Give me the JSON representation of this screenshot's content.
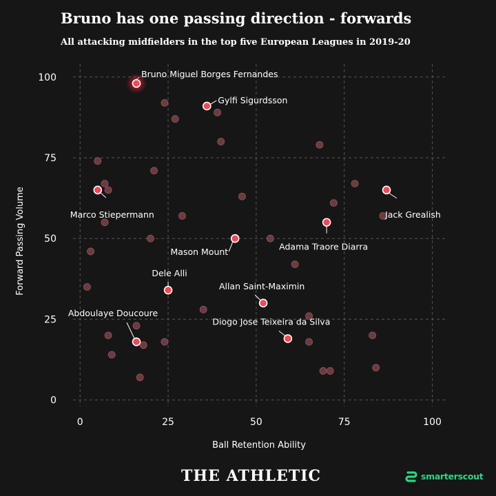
{
  "chart_data": {
    "type": "scatter",
    "title": "Bruno has one passing direction - forwards",
    "subtitle": "All attacking midfielders in the top five European Leagues in 2019-20",
    "xlabel": "Ball Retention Ability",
    "ylabel": "Forward Passing Volume",
    "xlim": [
      -2,
      104
    ],
    "ylim": [
      -2,
      104
    ],
    "xticks": [
      0,
      25,
      50,
      75,
      100
    ],
    "yticks": [
      0,
      25,
      50,
      75,
      100
    ],
    "grid": true,
    "highlight_color": "#ff4552",
    "base_color": "#6e3a3e",
    "points": [
      [
        24,
        92
      ],
      [
        27,
        87
      ],
      [
        39,
        89
      ],
      [
        40,
        80
      ],
      [
        68,
        79
      ],
      [
        5,
        74
      ],
      [
        21,
        71
      ],
      [
        7,
        67
      ],
      [
        8,
        65
      ],
      [
        78,
        67
      ],
      [
        46,
        63
      ],
      [
        72,
        61
      ],
      [
        86,
        57
      ],
      [
        29,
        57
      ],
      [
        7,
        55
      ],
      [
        20,
        50
      ],
      [
        54,
        50
      ],
      [
        3,
        46
      ],
      [
        61,
        42
      ],
      [
        2,
        35
      ],
      [
        35,
        28
      ],
      [
        65,
        26
      ],
      [
        16,
        23
      ],
      [
        8,
        20
      ],
      [
        83,
        20
      ],
      [
        24,
        18
      ],
      [
        18,
        17
      ],
      [
        65,
        18
      ],
      [
        9,
        14
      ],
      [
        84,
        10
      ],
      [
        69,
        9
      ],
      [
        71,
        9
      ],
      [
        17,
        7
      ]
    ],
    "highlighted": [
      {
        "name": "Bruno Miguel Borges Fernandes",
        "x": 16,
        "y": 98
      },
      {
        "name": "Gylfi Sigurdsson",
        "x": 36,
        "y": 91
      },
      {
        "name": "Marco Stiepermann",
        "x": 5,
        "y": 65
      },
      {
        "name": "Jack Grealish",
        "x": 87,
        "y": 65
      },
      {
        "name": "Adama Traore Diarra",
        "x": 70,
        "y": 55
      },
      {
        "name": "Mason Mount",
        "x": 44,
        "y": 50
      },
      {
        "name": "Dele Alli",
        "x": 25,
        "y": 34
      },
      {
        "name": "Allan Saint-Maximin",
        "x": 52,
        "y": 30
      },
      {
        "name": "Abdoulaye Doucoure",
        "x": 16,
        "y": 18
      },
      {
        "name": "Diogo Jose Teixeira da Silva",
        "x": 59,
        "y": 19
      }
    ]
  },
  "footer": {
    "publisher": "THE ATHLETIC",
    "partner": "smarterscout",
    "partner_icon": "smarterscout-logo-icon"
  }
}
